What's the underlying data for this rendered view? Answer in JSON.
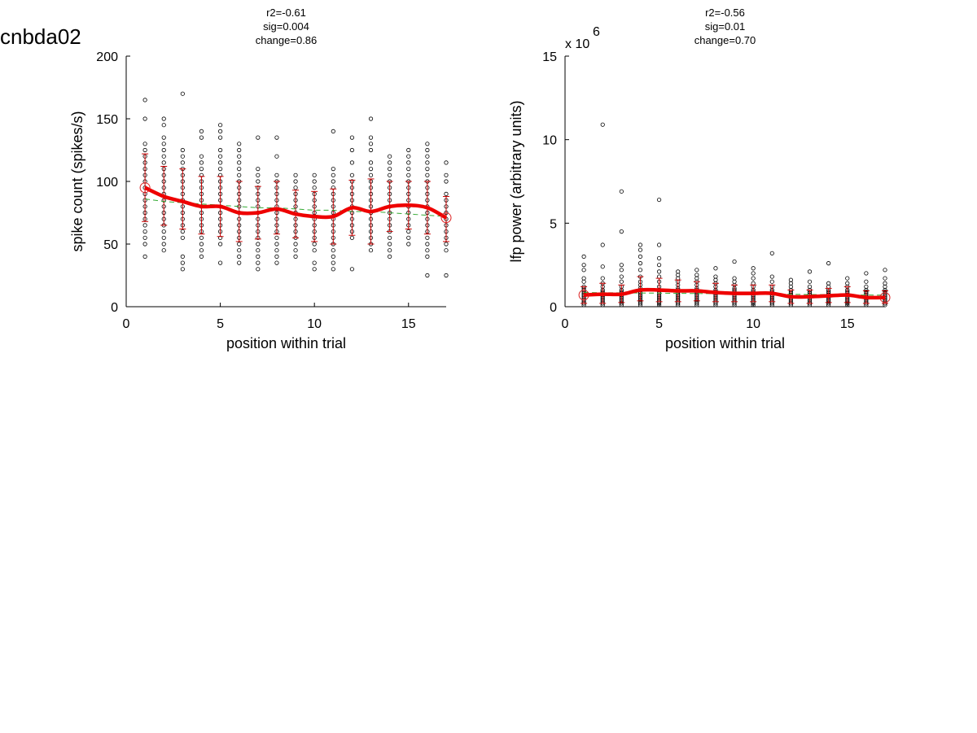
{
  "figure": {
    "title": "cnbda02"
  },
  "chart_data": [
    {
      "type": "scatter",
      "panel": "left",
      "stats": [
        "r2=-0.61",
        "sig=0.004",
        "change=0.86"
      ],
      "xlabel": "position within trial",
      "ylabel": "spike count (spikes/s)",
      "xlim": [
        0,
        17
      ],
      "ylim": [
        0,
        200
      ],
      "xticks": [
        0,
        5,
        10,
        15
      ],
      "yticks": [
        0,
        50,
        100,
        150,
        200
      ],
      "exponent_label": "",
      "grid": false,
      "mean": [
        95,
        88,
        84,
        80,
        80,
        75,
        75,
        78,
        74,
        72,
        72,
        79,
        76,
        80,
        81,
        79,
        71
      ],
      "err_low": [
        68,
        65,
        62,
        58,
        56,
        52,
        54,
        58,
        55,
        52,
        50,
        57,
        50,
        60,
        62,
        58,
        52
      ],
      "err_high": [
        122,
        112,
        110,
        104,
        104,
        100,
        96,
        100,
        93,
        92,
        94,
        101,
        102,
        100,
        100,
        100,
        88
      ],
      "fit": [
        86,
        84,
        83,
        82,
        81,
        80,
        79,
        79,
        78,
        77,
        77,
        76,
        76,
        75,
        74,
        73,
        72
      ],
      "points": [
        [
          40,
          50,
          55,
          60,
          65,
          70,
          75,
          80,
          85,
          90,
          95,
          100,
          105,
          110,
          115,
          120,
          125,
          130,
          150,
          165
        ],
        [
          45,
          50,
          55,
          60,
          65,
          70,
          75,
          80,
          85,
          90,
          95,
          100,
          105,
          110,
          115,
          120,
          125,
          130,
          135,
          145,
          150
        ],
        [
          30,
          35,
          40,
          55,
          60,
          65,
          70,
          75,
          80,
          85,
          90,
          95,
          100,
          105,
          110,
          115,
          120,
          125,
          170
        ],
        [
          40,
          45,
          50,
          55,
          60,
          65,
          70,
          75,
          80,
          85,
          90,
          95,
          100,
          105,
          110,
          115,
          120,
          135,
          140
        ],
        [
          35,
          50,
          55,
          60,
          65,
          70,
          75,
          80,
          85,
          90,
          95,
          100,
          105,
          110,
          115,
          120,
          125,
          135,
          140,
          145
        ],
        [
          35,
          40,
          45,
          50,
          55,
          60,
          65,
          70,
          75,
          80,
          85,
          90,
          95,
          100,
          105,
          110,
          115,
          120,
          125,
          130
        ],
        [
          30,
          35,
          40,
          45,
          50,
          55,
          60,
          65,
          70,
          75,
          80,
          85,
          90,
          95,
          100,
          105,
          110,
          135
        ],
        [
          35,
          40,
          45,
          50,
          55,
          60,
          65,
          70,
          75,
          80,
          85,
          90,
          95,
          100,
          105,
          120,
          135
        ],
        [
          40,
          45,
          50,
          55,
          60,
          65,
          70,
          75,
          80,
          85,
          90,
          95,
          100,
          105
        ],
        [
          30,
          35,
          45,
          50,
          55,
          60,
          65,
          70,
          75,
          80,
          85,
          90,
          95,
          100,
          105
        ],
        [
          30,
          35,
          40,
          45,
          50,
          55,
          60,
          65,
          70,
          75,
          80,
          85,
          90,
          95,
          100,
          105,
          110,
          140
        ],
        [
          30,
          55,
          60,
          65,
          70,
          75,
          80,
          85,
          90,
          95,
          100,
          105,
          115,
          125,
          135
        ],
        [
          45,
          50,
          55,
          60,
          65,
          70,
          75,
          80,
          85,
          90,
          95,
          100,
          105,
          110,
          115,
          125,
          130,
          135,
          150
        ],
        [
          40,
          45,
          50,
          55,
          60,
          65,
          70,
          75,
          80,
          85,
          90,
          95,
          100,
          105,
          110,
          115,
          120
        ],
        [
          50,
          55,
          60,
          65,
          70,
          75,
          80,
          85,
          90,
          95,
          100,
          105,
          110,
          115,
          120,
          125
        ],
        [
          25,
          40,
          45,
          50,
          55,
          60,
          65,
          70,
          75,
          80,
          85,
          90,
          95,
          100,
          105,
          110,
          115,
          120,
          125,
          130
        ],
        [
          25,
          45,
          50,
          55,
          60,
          65,
          70,
          75,
          80,
          85,
          90,
          100,
          105,
          115
        ]
      ]
    },
    {
      "type": "scatter",
      "panel": "right",
      "stats": [
        "r2=-0.56",
        "sig=0.01",
        "change=0.70"
      ],
      "xlabel": "position within trial",
      "ylabel": "lfp power (arbitrary units)",
      "xlim": [
        0,
        17
      ],
      "ylim": [
        0,
        15
      ],
      "xticks": [
        0,
        5,
        10,
        15
      ],
      "yticks": [
        0,
        5,
        10,
        15
      ],
      "exponent_label": "x 10",
      "exponent_power": "6",
      "grid": false,
      "mean": [
        0.7,
        0.75,
        0.75,
        1.0,
        1.0,
        0.95,
        0.95,
        0.85,
        0.8,
        0.8,
        0.8,
        0.6,
        0.6,
        0.65,
        0.7,
        0.55,
        0.55
      ],
      "err_low": [
        0.2,
        0.2,
        0.25,
        0.35,
        0.3,
        0.3,
        0.35,
        0.3,
        0.3,
        0.3,
        0.3,
        0.2,
        0.2,
        0.25,
        0.25,
        0.2,
        0.2
      ],
      "err_high": [
        1.2,
        1.4,
        1.3,
        1.8,
        1.7,
        1.6,
        1.5,
        1.4,
        1.3,
        1.3,
        1.3,
        1.0,
        1.0,
        1.1,
        1.2,
        0.95,
        0.95
      ],
      "fit": [
        0.85,
        0.84,
        0.83,
        0.82,
        0.81,
        0.8,
        0.79,
        0.78,
        0.77,
        0.76,
        0.75,
        0.74,
        0.73,
        0.72,
        0.71,
        0.7,
        0.69
      ],
      "points": [
        [
          0.1,
          0.2,
          0.3,
          0.4,
          0.5,
          0.6,
          0.7,
          0.8,
          0.9,
          1.0,
          1.1,
          1.2,
          1.5,
          1.7,
          2.2,
          2.5,
          3.0
        ],
        [
          0.1,
          0.2,
          0.3,
          0.4,
          0.5,
          0.6,
          0.7,
          0.8,
          0.9,
          1.0,
          1.2,
          1.4,
          1.7,
          2.4,
          3.7,
          10.9
        ],
        [
          0.1,
          0.2,
          0.3,
          0.4,
          0.5,
          0.6,
          0.7,
          0.8,
          0.9,
          1.0,
          1.2,
          1.5,
          1.8,
          2.2,
          2.5,
          4.5,
          6.9
        ],
        [
          0.1,
          0.2,
          0.3,
          0.4,
          0.5,
          0.6,
          0.7,
          0.8,
          0.9,
          1.0,
          1.1,
          1.3,
          1.5,
          1.8,
          2.2,
          2.6,
          3.0,
          3.4,
          3.7
        ],
        [
          0.1,
          0.2,
          0.3,
          0.4,
          0.5,
          0.6,
          0.7,
          0.8,
          0.9,
          1.0,
          1.2,
          1.5,
          1.8,
          2.1,
          2.5,
          2.9,
          3.7,
          6.4
        ],
        [
          0.1,
          0.2,
          0.3,
          0.4,
          0.5,
          0.6,
          0.7,
          0.8,
          0.9,
          1.0,
          1.1,
          1.3,
          1.5,
          1.7,
          1.9,
          2.1
        ],
        [
          0.1,
          0.2,
          0.3,
          0.4,
          0.5,
          0.6,
          0.7,
          0.8,
          0.9,
          1.0,
          1.1,
          1.3,
          1.5,
          1.7,
          1.9,
          2.2
        ],
        [
          0.1,
          0.2,
          0.3,
          0.4,
          0.5,
          0.6,
          0.7,
          0.8,
          0.9,
          1.0,
          1.2,
          1.4,
          1.6,
          1.8,
          2.3
        ],
        [
          0.1,
          0.2,
          0.3,
          0.4,
          0.5,
          0.6,
          0.7,
          0.8,
          0.9,
          1.0,
          1.1,
          1.3,
          1.5,
          1.7,
          2.7
        ],
        [
          0.1,
          0.2,
          0.3,
          0.4,
          0.5,
          0.6,
          0.7,
          0.8,
          0.9,
          1.0,
          1.2,
          1.4,
          1.7,
          2.0,
          2.3
        ],
        [
          0.1,
          0.2,
          0.3,
          0.4,
          0.5,
          0.6,
          0.7,
          0.8,
          0.9,
          1.0,
          1.2,
          1.5,
          1.8,
          3.2
        ],
        [
          0.1,
          0.2,
          0.3,
          0.4,
          0.5,
          0.6,
          0.7,
          0.8,
          0.9,
          1.0,
          1.2,
          1.4,
          1.6
        ],
        [
          0.1,
          0.2,
          0.3,
          0.4,
          0.5,
          0.6,
          0.7,
          0.8,
          0.9,
          1.0,
          1.2,
          1.5,
          2.1
        ],
        [
          0.1,
          0.2,
          0.3,
          0.4,
          0.5,
          0.6,
          0.7,
          0.8,
          0.9,
          1.0,
          1.2,
          1.4,
          2.6
        ],
        [
          0.1,
          0.2,
          0.3,
          0.4,
          0.5,
          0.6,
          0.7,
          0.8,
          0.9,
          1.0,
          1.2,
          1.4,
          1.7
        ],
        [
          0.1,
          0.2,
          0.3,
          0.4,
          0.5,
          0.6,
          0.7,
          0.8,
          0.9,
          1.0,
          1.2,
          1.5,
          2.0
        ],
        [
          0.1,
          0.2,
          0.3,
          0.4,
          0.5,
          0.6,
          0.7,
          0.8,
          0.9,
          1.0,
          1.2,
          1.4,
          1.7,
          2.2
        ]
      ]
    }
  ]
}
